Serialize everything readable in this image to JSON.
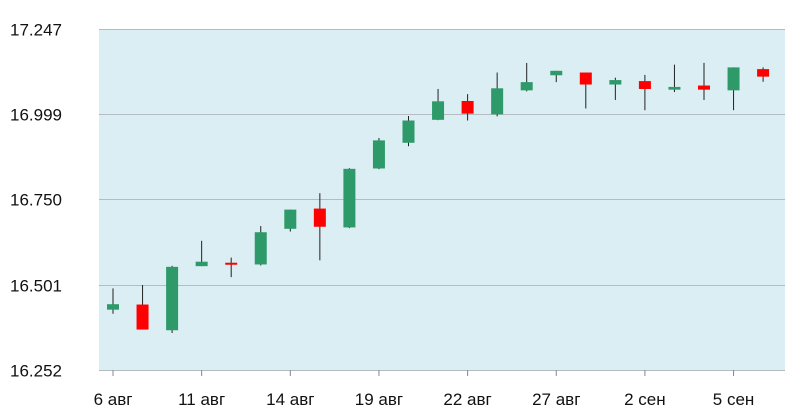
{
  "chart_data": {
    "type": "candlestick",
    "title": "",
    "xlabel": "",
    "ylabel": "",
    "ylim": [
      16.252,
      17.247
    ],
    "y_ticks": [
      "17.247",
      "16.999",
      "16.750",
      "16.501",
      "16.252"
    ],
    "y_tick_values": [
      17.247,
      16.999,
      16.75,
      16.501,
      16.252
    ],
    "x_tick_labels": [
      "6 авг",
      "11 авг",
      "14 авг",
      "19 авг",
      "22 авг",
      "27 авг",
      "2 сен",
      "5 сен"
    ],
    "x_tick_index": [
      0,
      3,
      6,
      9,
      12,
      15,
      18,
      21
    ],
    "grid": true,
    "legend": false,
    "colors": {
      "up": "#2e9a6a",
      "down": "#ff0000",
      "wick": "#222222",
      "plot_bg": "#daeef3",
      "grid": "#b4bcc2"
    },
    "candles": [
      {
        "open": 16.428,
        "high": 16.49,
        "low": 16.416,
        "close": 16.444
      },
      {
        "open": 16.443,
        "high": 16.5,
        "low": 16.378,
        "close": 16.37
      },
      {
        "open": 16.368,
        "high": 16.556,
        "low": 16.36,
        "close": 16.553
      },
      {
        "open": 16.555,
        "high": 16.629,
        "low": 16.555,
        "close": 16.568
      },
      {
        "open": 16.565,
        "high": 16.58,
        "low": 16.523,
        "close": 16.56
      },
      {
        "open": 16.56,
        "high": 16.672,
        "low": 16.557,
        "close": 16.654
      },
      {
        "open": 16.664,
        "high": 16.72,
        "low": 16.656,
        "close": 16.72
      },
      {
        "open": 16.723,
        "high": 16.768,
        "low": 16.572,
        "close": 16.67
      },
      {
        "open": 16.668,
        "high": 16.841,
        "low": 16.666,
        "close": 16.839
      },
      {
        "open": 16.84,
        "high": 16.929,
        "low": 16.838,
        "close": 16.922
      },
      {
        "open": 16.915,
        "high": 16.993,
        "low": 16.905,
        "close": 16.98
      },
      {
        "open": 16.982,
        "high": 17.072,
        "low": 16.981,
        "close": 17.036
      },
      {
        "open": 17.037,
        "high": 17.057,
        "low": 16.98,
        "close": 17.0
      },
      {
        "open": 16.998,
        "high": 17.12,
        "low": 16.992,
        "close": 17.074
      },
      {
        "open": 17.068,
        "high": 17.148,
        "low": 17.065,
        "close": 17.092
      },
      {
        "open": 17.112,
        "high": 17.125,
        "low": 17.092,
        "close": 17.125
      },
      {
        "open": 17.12,
        "high": 17.12,
        "low": 17.015,
        "close": 17.085
      },
      {
        "open": 17.085,
        "high": 17.105,
        "low": 17.04,
        "close": 17.098
      },
      {
        "open": 17.095,
        "high": 17.113,
        "low": 17.01,
        "close": 17.072
      },
      {
        "open": 17.07,
        "high": 17.143,
        "low": 17.063,
        "close": 17.078
      },
      {
        "open": 17.082,
        "high": 17.148,
        "low": 17.04,
        "close": 17.07
      },
      {
        "open": 17.068,
        "high": 17.135,
        "low": 17.01,
        "close": 17.135
      },
      {
        "open": 17.13,
        "high": 17.135,
        "low": 17.093,
        "close": 17.108
      }
    ]
  }
}
